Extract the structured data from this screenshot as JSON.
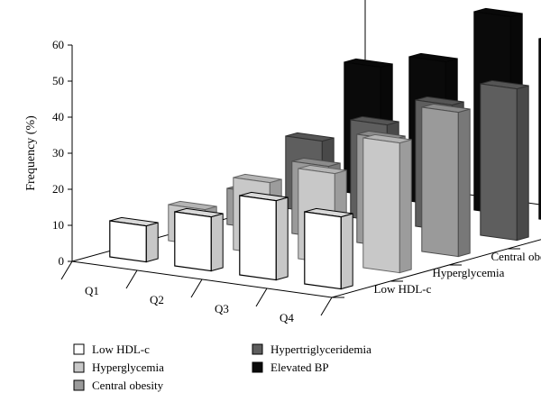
{
  "chart_data": {
    "type": "bar",
    "style": "3d-grouped",
    "categories": [
      "Q1",
      "Q2",
      "Q3",
      "Q4"
    ],
    "series": [
      {
        "name": "Low HDL-c",
        "values": [
          10,
          15,
          22,
          20
        ],
        "color": "#ffffff"
      },
      {
        "name": "Hyperglycemia",
        "values": [
          10,
          20,
          25,
          36
        ],
        "color": "#c8c8c8"
      },
      {
        "name": "Central obesity",
        "values": [
          10,
          20,
          30,
          40
        ],
        "color": "#9a9a9a"
      },
      {
        "name": "Hypertriglyceridemia",
        "values": [
          20,
          27,
          35,
          42
        ],
        "color": "#5e5e5e"
      },
      {
        "name": "Elevated BP",
        "values": [
          36,
          40,
          55,
          50
        ],
        "color": "#0a0a0a"
      }
    ],
    "ylabel": "Frequency (%)",
    "xlabel": "",
    "ylim": [
      0,
      60
    ],
    "yticks": [
      0,
      10,
      20,
      30,
      40,
      50,
      60
    ],
    "grid": false,
    "legend_position": "bottom"
  }
}
